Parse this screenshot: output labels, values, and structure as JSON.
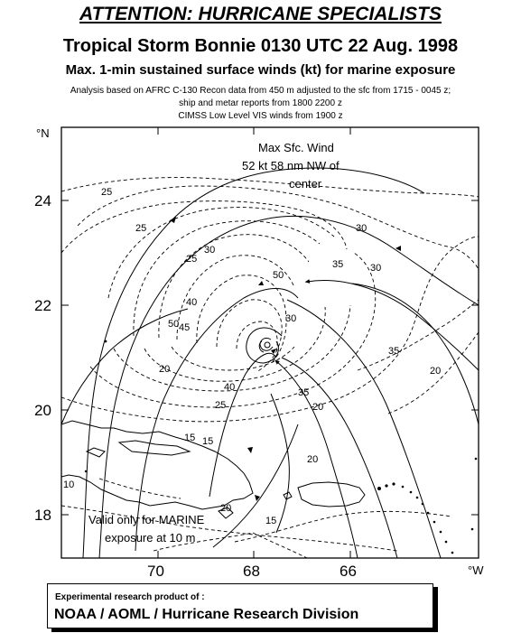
{
  "header": {
    "attention": "ATTENTION: HURRICANE SPECIALISTS",
    "title": "Tropical Storm Bonnie  0130 UTC 22 Aug. 1998",
    "subtitle": "Max. 1-min sustained surface winds (kt) for marine exposure",
    "note1": "Analysis based on  AFRC C-130 Recon data from 450 m adjusted to the sfc from  1715 - 0045 z;",
    "note2": "ship and metar reports from  1800 2200 z",
    "note3": "CIMSS Low Level VIS winds from  1900 z"
  },
  "map": {
    "lat_ticks": [
      "24",
      "22",
      "20",
      "18"
    ],
    "lon_ticks": [
      "70",
      "68",
      "66"
    ],
    "lat_unit": "°N",
    "lon_unit": "°W",
    "max_wind_text": [
      "Max Sfc. Wind",
      "52 kt  58 nm NW of",
      "center"
    ],
    "valid_text": [
      "Valid only for MARINE",
      "exposure at 10 m"
    ],
    "contour_labels": [
      "25",
      "25",
      "30",
      "30",
      "25",
      "35",
      "30",
      "50",
      "40",
      "35",
      "20",
      "45",
      "30",
      "40",
      "25",
      "35",
      "20",
      "20",
      "15",
      "10",
      "15",
      "15",
      "20",
      "20",
      "50"
    ]
  },
  "footer": {
    "line1": "Experimental research product of :",
    "line2": "NOAA / AOML / Hurricane Research Division"
  }
}
